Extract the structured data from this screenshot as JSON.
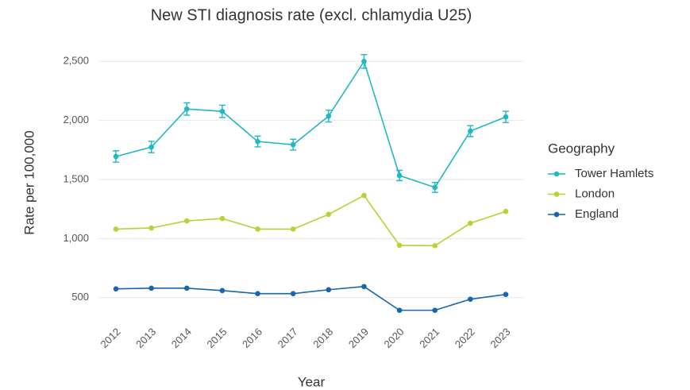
{
  "chart_data": {
    "type": "line",
    "title": "New STI diagnosis rate (excl. chlamydia U25)",
    "x_label": "Year",
    "y_label": "Rate per 100,000",
    "legend_title": "Geography",
    "legend": "right",
    "grid": true,
    "categories": [
      "2012",
      "2013",
      "2014",
      "2015",
      "2016",
      "2017",
      "2018",
      "2019",
      "2020",
      "2021",
      "2022",
      "2023"
    ],
    "ylim": [
      330,
      2650
    ],
    "yticks": [
      500,
      {
        "value": 1000,
        "label": "1,000"
      },
      {
        "value": 1500,
        "label": "1,500"
      },
      {
        "value": 2000,
        "label": "2,000"
      },
      {
        "value": 2500,
        "label": "2,500"
      }
    ],
    "series": [
      {
        "name": "Tower Hamlets",
        "color": "#1fb8c3",
        "values": [
          1695,
          1775,
          2097,
          2077,
          1822,
          1795,
          2037,
          2500,
          1534,
          1433,
          1910,
          2030
        ],
        "errors": [
          48,
          48,
          52,
          52,
          46,
          46,
          50,
          58,
          44,
          42,
          46,
          48
        ]
      },
      {
        "name": "London",
        "color": "#b5d334",
        "values": [
          1080,
          1090,
          1150,
          1170,
          1080,
          1080,
          1205,
          1365,
          943,
          940,
          1130,
          1230
        ]
      },
      {
        "name": "England",
        "color": "#1565b0",
        "values": [
          574,
          580,
          580,
          560,
          534,
          534,
          567,
          594,
          393,
          393,
          487,
          527
        ]
      }
    ]
  }
}
